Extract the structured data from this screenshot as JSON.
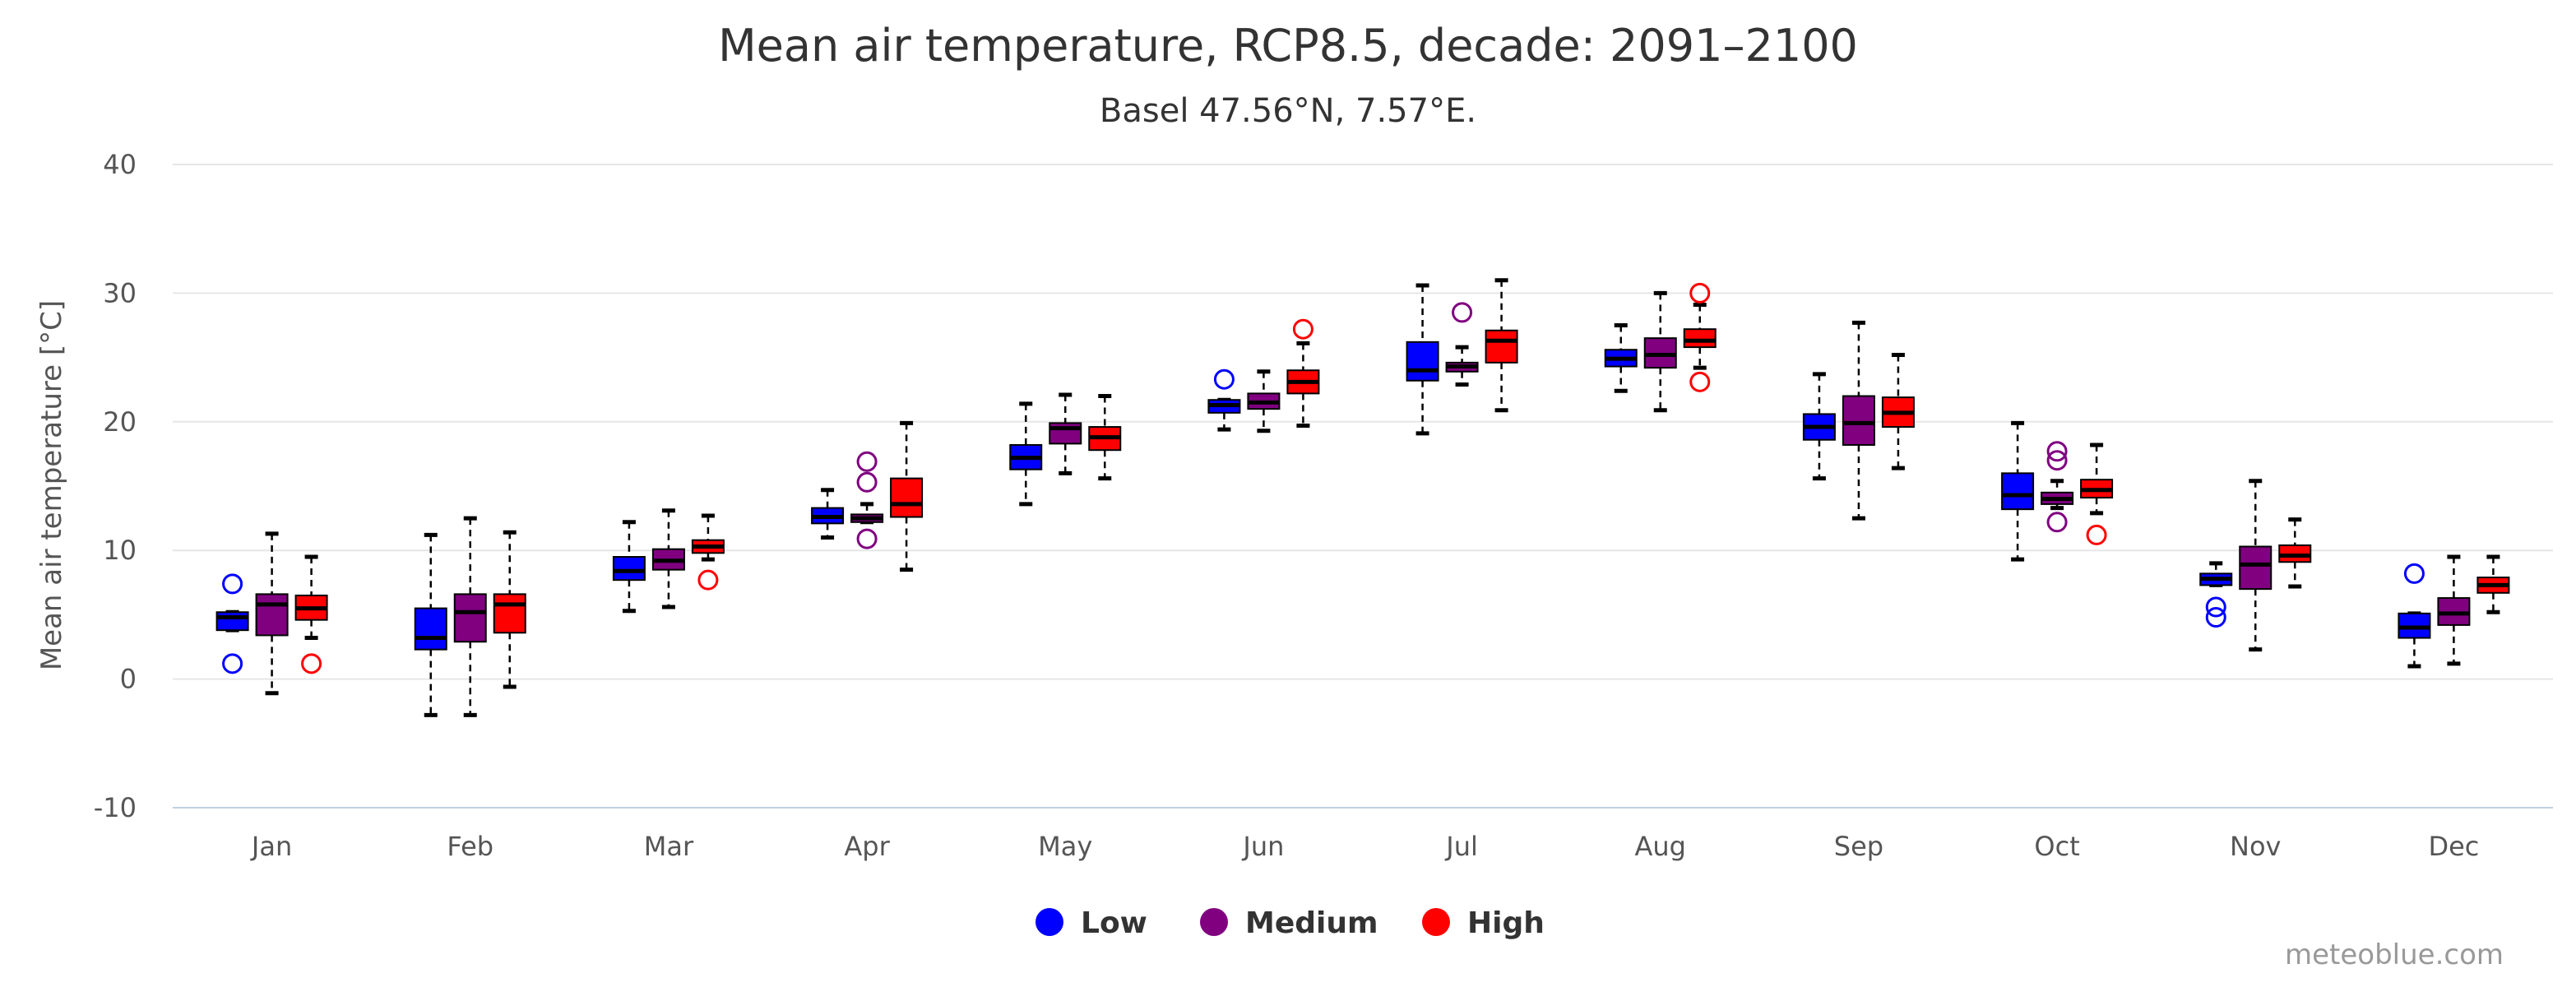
{
  "chart_data": {
    "type": "boxplot",
    "title": "Mean air temperature, RCP8.5, decade: 2091–2100",
    "subtitle": "Basel 47.56°N, 7.57°E.",
    "ylabel": "Mean air temperature [°C]",
    "ylim": [
      -10,
      40
    ],
    "yticks": [
      -10,
      0,
      10,
      20,
      30,
      40
    ],
    "categories": [
      "Jan",
      "Feb",
      "Mar",
      "Apr",
      "May",
      "Jun",
      "Jul",
      "Aug",
      "Sep",
      "Oct",
      "Nov",
      "Dec"
    ],
    "grid": true,
    "legend_position": "bottom-center",
    "series": [
      {
        "name": "Low",
        "color": "#0000ff",
        "boxes": [
          {
            "low": 3.8,
            "q1": 3.8,
            "median": 4.8,
            "q3": 5.2,
            "high": 5.2,
            "outliers": [
              7.4,
              1.2
            ]
          },
          {
            "low": -2.8,
            "q1": 2.3,
            "median": 3.2,
            "q3": 5.5,
            "high": 11.2,
            "outliers": []
          },
          {
            "low": 5.3,
            "q1": 7.7,
            "median": 8.4,
            "q3": 9.5,
            "high": 12.2,
            "outliers": []
          },
          {
            "low": 11.0,
            "q1": 12.1,
            "median": 12.6,
            "q3": 13.3,
            "high": 14.7,
            "outliers": []
          },
          {
            "low": 13.6,
            "q1": 16.3,
            "median": 17.2,
            "q3": 18.2,
            "high": 21.4,
            "outliers": []
          },
          {
            "low": 19.4,
            "q1": 20.7,
            "median": 21.3,
            "q3": 21.7,
            "high": 21.7,
            "outliers": [
              23.3
            ]
          },
          {
            "low": 19.1,
            "q1": 23.2,
            "median": 24.0,
            "q3": 26.2,
            "high": 30.6,
            "outliers": []
          },
          {
            "low": 22.4,
            "q1": 24.3,
            "median": 24.9,
            "q3": 25.6,
            "high": 27.5,
            "outliers": []
          },
          {
            "low": 15.6,
            "q1": 18.6,
            "median": 19.6,
            "q3": 20.6,
            "high": 23.7,
            "outliers": []
          },
          {
            "low": 9.3,
            "q1": 13.2,
            "median": 14.3,
            "q3": 16.0,
            "high": 19.9,
            "outliers": []
          },
          {
            "low": 7.3,
            "q1": 7.3,
            "median": 7.8,
            "q3": 8.2,
            "high": 9.0,
            "outliers": [
              5.6,
              4.8
            ]
          },
          {
            "low": 1.0,
            "q1": 3.2,
            "median": 4.0,
            "q3": 5.1,
            "high": 5.1,
            "outliers": [
              8.2
            ]
          }
        ]
      },
      {
        "name": "Medium",
        "color": "#800080",
        "boxes": [
          {
            "low": -1.1,
            "q1": 3.4,
            "median": 5.8,
            "q3": 6.6,
            "high": 11.3,
            "outliers": []
          },
          {
            "low": -2.8,
            "q1": 2.9,
            "median": 5.2,
            "q3": 6.6,
            "high": 12.5,
            "outliers": []
          },
          {
            "low": 5.6,
            "q1": 8.5,
            "median": 9.2,
            "q3": 10.1,
            "high": 13.1,
            "outliers": []
          },
          {
            "low": 12.2,
            "q1": 12.2,
            "median": 12.5,
            "q3": 12.8,
            "high": 13.6,
            "outliers": [
              16.9,
              15.3,
              10.9
            ]
          },
          {
            "low": 16.0,
            "q1": 18.3,
            "median": 19.5,
            "q3": 19.9,
            "high": 22.1,
            "outliers": []
          },
          {
            "low": 19.3,
            "q1": 21.0,
            "median": 21.5,
            "q3": 22.2,
            "high": 23.9,
            "outliers": []
          },
          {
            "low": 22.9,
            "q1": 23.9,
            "median": 24.3,
            "q3": 24.6,
            "high": 25.8,
            "outliers": [
              28.5
            ]
          },
          {
            "low": 20.9,
            "q1": 24.2,
            "median": 25.2,
            "q3": 26.5,
            "high": 30.0,
            "outliers": []
          },
          {
            "low": 12.5,
            "q1": 18.2,
            "median": 19.9,
            "q3": 22.0,
            "high": 27.7,
            "outliers": []
          },
          {
            "low": 13.3,
            "q1": 13.6,
            "median": 14.0,
            "q3": 14.5,
            "high": 15.4,
            "outliers": [
              17.7,
              17.0,
              12.2
            ]
          },
          {
            "low": 2.3,
            "q1": 7.0,
            "median": 8.9,
            "q3": 10.3,
            "high": 15.4,
            "outliers": []
          },
          {
            "low": 1.2,
            "q1": 4.2,
            "median": 5.1,
            "q3": 6.3,
            "high": 9.5,
            "outliers": []
          }
        ]
      },
      {
        "name": "High",
        "color": "#ff0000",
        "boxes": [
          {
            "low": 3.2,
            "q1": 4.6,
            "median": 5.5,
            "q3": 6.5,
            "high": 9.5,
            "outliers": [
              1.2
            ]
          },
          {
            "low": -0.6,
            "q1": 3.6,
            "median": 5.8,
            "q3": 6.6,
            "high": 11.4,
            "outliers": []
          },
          {
            "low": 9.3,
            "q1": 9.8,
            "median": 10.3,
            "q3": 10.8,
            "high": 12.7,
            "outliers": [
              7.7
            ]
          },
          {
            "low": 8.5,
            "q1": 12.6,
            "median": 13.6,
            "q3": 15.6,
            "high": 19.9,
            "outliers": []
          },
          {
            "low": 15.6,
            "q1": 17.8,
            "median": 18.8,
            "q3": 19.6,
            "high": 22.0,
            "outliers": []
          },
          {
            "low": 19.7,
            "q1": 22.2,
            "median": 23.1,
            "q3": 24.0,
            "high": 26.1,
            "outliers": [
              27.2
            ]
          },
          {
            "low": 20.9,
            "q1": 24.6,
            "median": 26.3,
            "q3": 27.1,
            "high": 31.0,
            "outliers": []
          },
          {
            "low": 24.2,
            "q1": 25.8,
            "median": 26.3,
            "q3": 27.2,
            "high": 29.1,
            "outliers": [
              30.0,
              23.1
            ]
          },
          {
            "low": 16.4,
            "q1": 19.6,
            "median": 20.7,
            "q3": 21.9,
            "high": 25.2,
            "outliers": []
          },
          {
            "low": 12.9,
            "q1": 14.1,
            "median": 14.7,
            "q3": 15.5,
            "high": 18.2,
            "outliers": [
              11.2
            ]
          },
          {
            "low": 7.2,
            "q1": 9.1,
            "median": 9.6,
            "q3": 10.4,
            "high": 12.4,
            "outliers": []
          },
          {
            "low": 5.2,
            "q1": 6.7,
            "median": 7.3,
            "q3": 7.9,
            "high": 9.5,
            "outliers": []
          }
        ]
      }
    ]
  },
  "credit": "meteoblue.com"
}
